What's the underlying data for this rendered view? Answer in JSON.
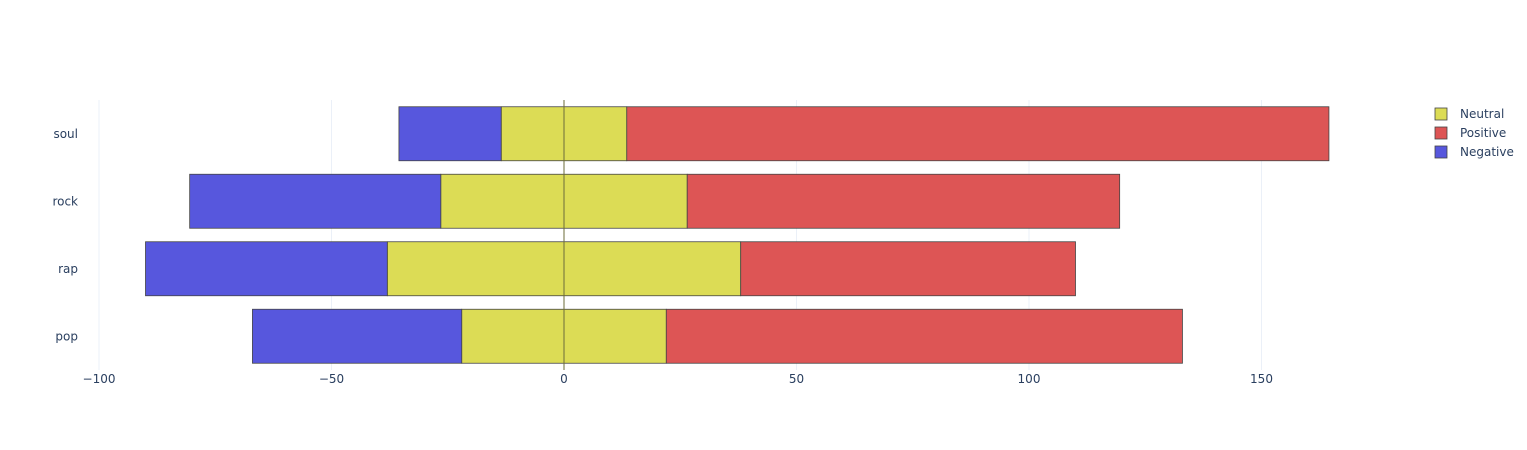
{
  "chart_data": {
    "type": "bar",
    "orientation": "horizontal",
    "barmode": "stacked-diverging",
    "categories": [
      "pop",
      "rap",
      "rock",
      "soul"
    ],
    "series": [
      {
        "name": "Neutral",
        "color": "#dcdc55",
        "negative": [
          -22,
          -38,
          -26.5,
          -13.5
        ],
        "positive": [
          22,
          38,
          26.5,
          13.5
        ]
      },
      {
        "name": "Positive",
        "color": "#dd5555",
        "negative": [
          0,
          0,
          0,
          0
        ],
        "positive": [
          111,
          72,
          93,
          151
        ]
      },
      {
        "name": "Negative",
        "color": "#5757dd",
        "negative": [
          -45,
          -52,
          -54,
          -22
        ],
        "positive": [
          0,
          0,
          0,
          0
        ]
      }
    ],
    "xlim": [
      -100,
      190
    ],
    "xticks": [
      -100,
      -50,
      0,
      50,
      100,
      150
    ],
    "xtick_labels": [
      "−100",
      "−50",
      "0",
      "50",
      "100",
      "150"
    ],
    "grid": true,
    "legend_position": "top-right",
    "title": "",
    "xlabel": "",
    "ylabel": ""
  }
}
